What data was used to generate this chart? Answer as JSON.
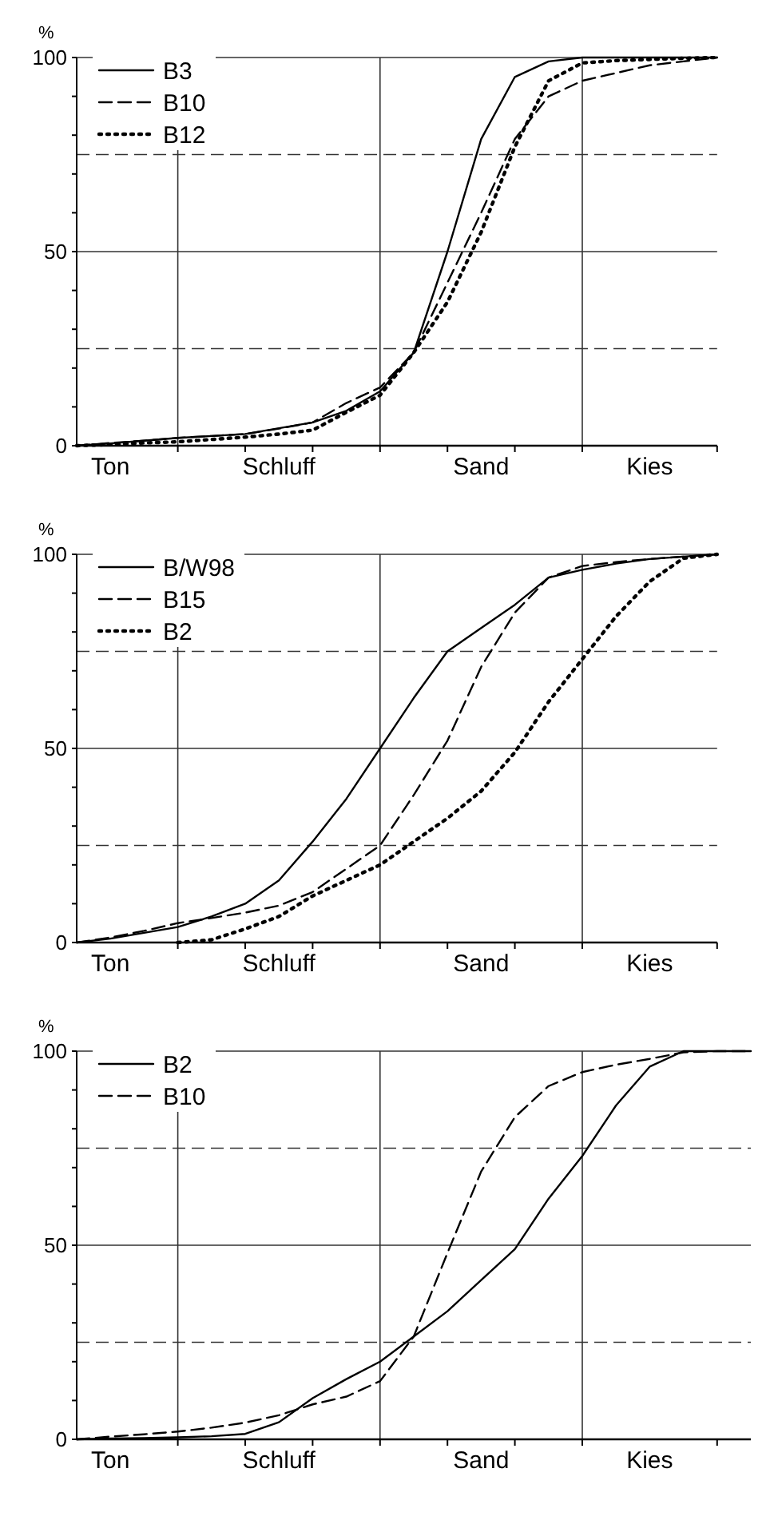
{
  "chart_data": [
    {
      "type": "line",
      "ylabel": "%",
      "ylim": [
        0,
        100
      ],
      "legend": "top left",
      "categories": [
        null,
        "Ton",
        null,
        null,
        null,
        null,
        "Schluff",
        null,
        null,
        null,
        null,
        null,
        "Sand",
        null,
        null,
        null,
        null,
        "Kies",
        null,
        null
      ],
      "yticks": [
        0,
        {
          "value": 10,
          "label": null
        },
        {
          "value": 20,
          "label": null
        },
        {
          "value": 30,
          "label": null
        },
        {
          "value": 40,
          "label": null
        },
        50,
        {
          "value": 60,
          "label": null
        },
        {
          "value": 70,
          "label": null
        },
        {
          "value": 80,
          "label": null
        },
        {
          "value": 90,
          "label": null
        },
        100
      ],
      "grid": true,
      "ref_lines": [
        {
          "axis": "y",
          "value": 25,
          "line_style": "dashed"
        },
        {
          "axis": "y",
          "value": 75,
          "line_style": "dashed"
        }
      ],
      "series": [
        {
          "name": "B3",
          "color": "#000000",
          "line_style": "solid",
          "values": [
            0,
            0.6,
            1.3,
            2,
            2.5,
            3,
            4.5,
            6,
            9,
            14,
            24,
            50,
            79,
            95,
            99,
            100,
            100,
            100,
            100,
            100
          ]
        },
        {
          "name": "B10",
          "color": "#000000",
          "line_style": "dashed",
          "values": [
            0,
            0.7,
            1.3,
            2,
            2.5,
            3,
            4.4,
            6,
            11,
            15,
            24,
            42,
            60,
            79,
            90,
            94,
            96,
            98,
            99,
            100
          ]
        },
        {
          "name": "B12",
          "color": "#000000",
          "line_style": "dotted",
          "values": [
            0,
            0.3,
            0.7,
            1,
            1.6,
            2.2,
            3,
            4,
            8.6,
            13,
            24,
            37,
            55,
            77,
            94,
            98.6,
            99.2,
            99.5,
            99.8,
            100
          ]
        }
      ]
    },
    {
      "type": "line",
      "ylabel": "%",
      "ylim": [
        0,
        100
      ],
      "legend": "top left",
      "categories": [
        null,
        "Ton",
        null,
        null,
        null,
        null,
        "Schluff",
        null,
        null,
        null,
        null,
        null,
        "Sand",
        null,
        null,
        null,
        null,
        "Kies",
        null,
        null
      ],
      "yticks": [
        0,
        {
          "value": 10,
          "label": null
        },
        {
          "value": 20,
          "label": null
        },
        {
          "value": 30,
          "label": null
        },
        {
          "value": 40,
          "label": null
        },
        50,
        {
          "value": 60,
          "label": null
        },
        {
          "value": 70,
          "label": null
        },
        {
          "value": 80,
          "label": null
        },
        {
          "value": 90,
          "label": null
        },
        100
      ],
      "grid": true,
      "ref_lines": [
        {
          "axis": "y",
          "value": 25,
          "line_style": "dashed"
        },
        {
          "axis": "y",
          "value": 75,
          "line_style": "dashed"
        }
      ],
      "series": [
        {
          "name": "B/W98",
          "color": "#000000",
          "line_style": "solid",
          "values": [
            0,
            1,
            2.5,
            4,
            6.7,
            10,
            16,
            26,
            37,
            50,
            63,
            75,
            81,
            87,
            94,
            96,
            97.6,
            98.8,
            99.4,
            100
          ]
        },
        {
          "name": "B15",
          "color": "#000000",
          "line_style": "dashed",
          "values": [
            0,
            1.3,
            3,
            5,
            6.3,
            7.7,
            9.5,
            13,
            19,
            25,
            38,
            52,
            71,
            85,
            94,
            97,
            98,
            98.8,
            99.4,
            100
          ]
        },
        {
          "name": "B2",
          "color": "#000000",
          "line_style": "dotted",
          "values": [
            null,
            null,
            null,
            0,
            0.7,
            3.5,
            6.7,
            12,
            16,
            20,
            26,
            32,
            39,
            49,
            62,
            73,
            84,
            93,
            99,
            100
          ]
        }
      ]
    },
    {
      "type": "line",
      "ylabel": "%",
      "ylim": [
        0,
        100
      ],
      "legend": "top left",
      "categories": [
        null,
        "Ton",
        null,
        null,
        null,
        null,
        "Schluff",
        null,
        null,
        null,
        null,
        null,
        "Sand",
        null,
        null,
        null,
        null,
        "Kies",
        null,
        null,
        null
      ],
      "yticks": [
        0,
        {
          "value": 10,
          "label": null
        },
        {
          "value": 20,
          "label": null
        },
        {
          "value": 30,
          "label": null
        },
        {
          "value": 40,
          "label": null
        },
        50,
        {
          "value": 60,
          "label": null
        },
        {
          "value": 70,
          "label": null
        },
        {
          "value": 80,
          "label": null
        },
        {
          "value": 90,
          "label": null
        },
        100
      ],
      "grid": true,
      "ref_lines": [
        {
          "axis": "y",
          "value": 25,
          "line_style": "dashed"
        },
        {
          "axis": "y",
          "value": 75,
          "line_style": "dashed"
        }
      ],
      "series": [
        {
          "name": "B2",
          "color": "#000000",
          "line_style": "solid",
          "values": [
            0,
            0.2,
            0.3,
            0.5,
            0.8,
            1.4,
            4.4,
            10.6,
            15.5,
            20,
            26.5,
            33,
            41,
            49,
            62,
            73,
            86,
            96,
            100,
            100,
            100
          ]
        },
        {
          "name": "B10",
          "color": "#000000",
          "line_style": "dashed",
          "values": [
            0,
            0.7,
            1.3,
            2,
            3,
            4.3,
            6.2,
            9,
            11,
            15,
            26.5,
            48,
            69,
            83,
            91,
            94.6,
            96.5,
            98,
            99.7,
            100,
            100
          ]
        }
      ]
    }
  ]
}
